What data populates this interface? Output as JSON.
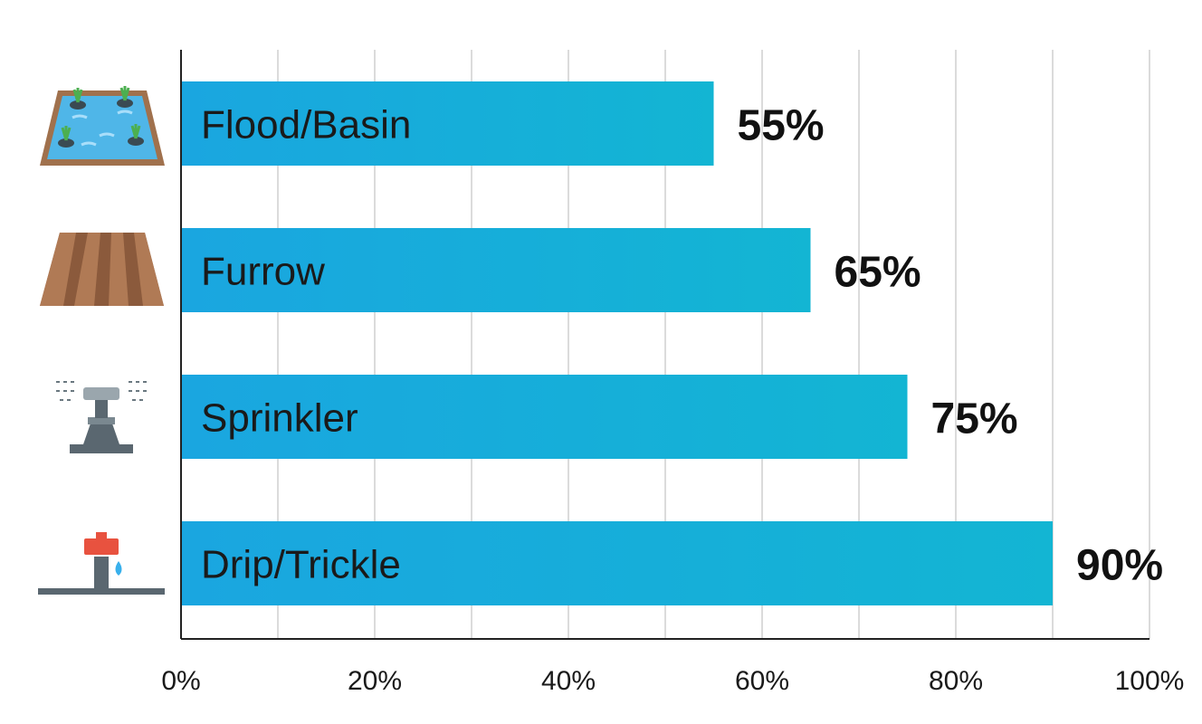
{
  "chart_data": {
    "type": "bar",
    "orientation": "horizontal",
    "categories": [
      "Flood/Basin",
      "Furrow",
      "Sprinkler",
      "Drip/Trickle"
    ],
    "values": [
      55,
      65,
      75,
      90
    ],
    "value_labels": [
      "55%",
      "65%",
      "75%",
      "90%"
    ],
    "icons": [
      "flood-basin-icon",
      "furrow-icon",
      "sprinkler-icon",
      "drip-emitter-icon"
    ],
    "xlim": [
      0,
      100
    ],
    "x_ticks": [
      0,
      10,
      20,
      30,
      40,
      50,
      60,
      70,
      80,
      90,
      100
    ],
    "x_tick_labels": [
      "0%",
      "20%",
      "40%",
      "60%",
      "80%",
      "100%"
    ],
    "x_tick_label_values": [
      0,
      20,
      40,
      60,
      80,
      100
    ],
    "grid": true,
    "legend": "none",
    "title": "",
    "xlabel": "",
    "ylabel": "",
    "colors": {
      "bar_start": "#1aa6e0",
      "bar_end": "#13b5d3",
      "grid": "#cfcfcf",
      "axis": "#222222"
    }
  }
}
